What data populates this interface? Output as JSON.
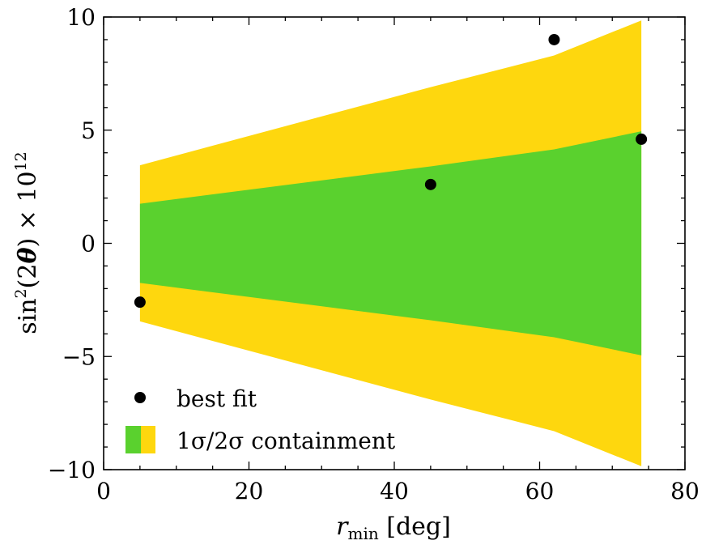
{
  "chart_data": {
    "type": "scatter",
    "xlabel": "r_min [deg]",
    "xlabel_parts": {
      "main": "r",
      "sub": "min",
      "unit": " [deg]"
    },
    "ylabel": "sin^2(2θ) × 10^12",
    "ylabel_parts": {
      "pre": "sin",
      "sq": "2",
      "mid": "(2",
      "theta": "θ",
      "post": ") × 10",
      "exp": "12"
    },
    "xlim": [
      0,
      80
    ],
    "ylim": [
      -10,
      10
    ],
    "x_ticks": [
      0,
      20,
      40,
      60,
      80
    ],
    "y_ticks": [
      -10,
      -5,
      0,
      5,
      10
    ],
    "x_tick_labels": [
      "0",
      "20",
      "40",
      "60",
      "80"
    ],
    "y_tick_labels": [
      "−10",
      "−5",
      "0",
      "5",
      "10"
    ],
    "bands": {
      "x": [
        5,
        45,
        62,
        74
      ],
      "one_sigma_upper": [
        1.75,
        3.4,
        4.15,
        4.95
      ],
      "one_sigma_lower": [
        -1.75,
        -3.4,
        -4.15,
        -4.95
      ],
      "two_sigma_upper": [
        3.45,
        6.9,
        8.3,
        9.85
      ],
      "two_sigma_lower": [
        -3.45,
        -6.9,
        -8.3,
        -9.85
      ]
    },
    "best_fit": {
      "name": "best fit",
      "x": [
        5,
        45,
        62,
        74
      ],
      "y": [
        -2.6,
        2.6,
        9.0,
        4.6
      ]
    },
    "legend": {
      "location": "lower-left",
      "entries": [
        "best fit",
        "1σ/2σ containment"
      ]
    },
    "colors": {
      "one_sigma": "#5ad12e",
      "two_sigma": "#fed70e",
      "points": "#000000"
    }
  }
}
